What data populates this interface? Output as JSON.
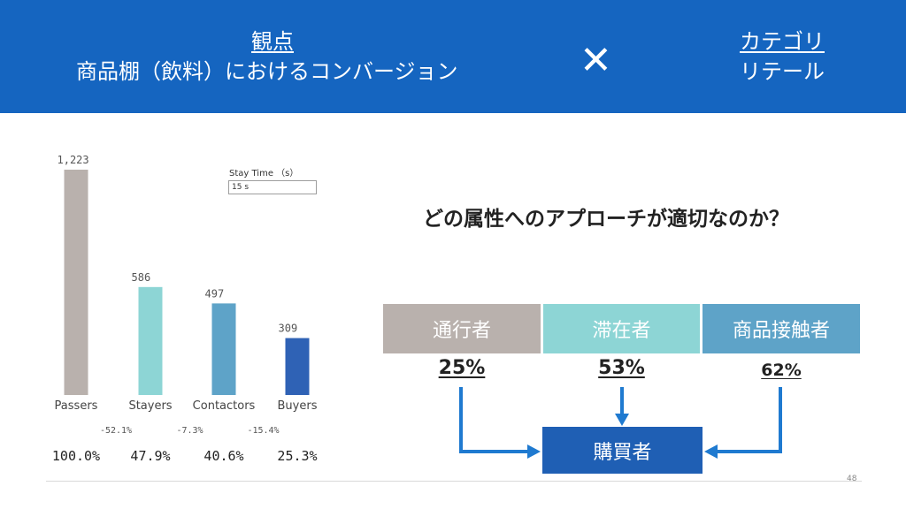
{
  "header": {
    "viewpoint_label": "観点",
    "viewpoint_value": "商品棚（飲料）におけるコンバージョン",
    "cross_symbol": "✕",
    "category_label": "カテゴリ",
    "category_value": "リテール",
    "background_color": "#1565c0"
  },
  "stay_time": {
    "label": "Stay Time （s）",
    "value": "15 s"
  },
  "chart_data": {
    "type": "bar",
    "categories": [
      "Passers",
      "Stayers",
      "Contactors",
      "Buyers"
    ],
    "values": [
      1223,
      586,
      497,
      309
    ],
    "value_labels": [
      "1,223",
      "586",
      "497",
      "309"
    ],
    "colors": [
      "#b9b1ad",
      "#8dd5d5",
      "#5ea3c8",
      "#2f62b5"
    ],
    "drop_rates": [
      "-52.1%",
      "-7.3%",
      "-15.4%"
    ],
    "ratios": [
      "100.0%",
      "47.9%",
      "40.6%",
      "25.3%"
    ],
    "title": "",
    "xlabel": "",
    "ylabel": "",
    "ylim": [
      0,
      1223
    ],
    "grid": false,
    "legend": "none"
  },
  "question": "どの属性へのアプローチが適切なのか？",
  "segments": [
    {
      "label": "通行者",
      "rate": "25%",
      "color": "#b9b1ad"
    },
    {
      "label": "滞在者",
      "rate": "53%",
      "color": "#8dd5d5"
    },
    {
      "label": "商品接触者",
      "rate": "62%",
      "color": "#5ea3c8"
    }
  ],
  "buyer_label": "購買者",
  "buyer_color": "#1f5fb4",
  "arrow_color": "#1f7ad0",
  "page_number": "48"
}
